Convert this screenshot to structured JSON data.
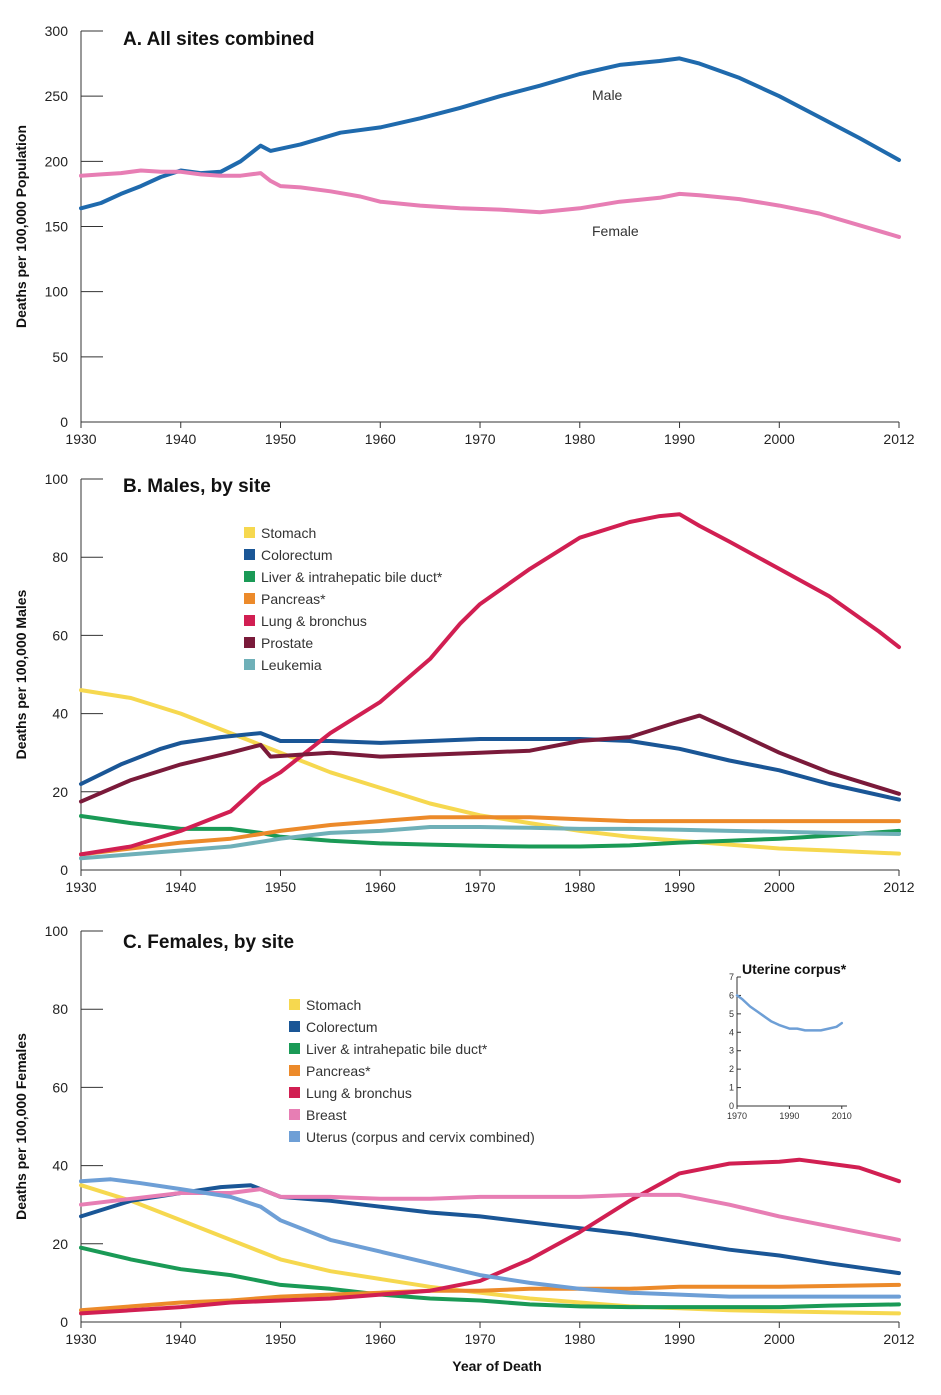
{
  "x_axis_label": "Year of Death",
  "colors": {
    "male": "#1f6aad",
    "female": "#e77eb4",
    "stomach": "#f6d84f",
    "colorectum": "#1a5696",
    "liver": "#1a9a56",
    "pancreas": "#ec8a2a",
    "lung": "#d11f52",
    "prostate": "#7a1a3a",
    "leukemia": "#6fb0b8",
    "breast": "#e77eb4",
    "uterus": "#6e9fd6",
    "uterine_corpus": "#6e9fd6"
  },
  "chart_data": [
    {
      "type": "line",
      "title": "A. All sites combined",
      "ylabel": "Deaths per 100,000 Population",
      "xlabel": "",
      "xlim": [
        1930,
        2012
      ],
      "ylim": [
        0,
        300
      ],
      "xticks": [
        "1930",
        "1940",
        "1950",
        "1960",
        "1970",
        "1980",
        "1990",
        "2000",
        "2012"
      ],
      "yticks": [
        "0",
        "50",
        "100",
        "150",
        "200",
        "250",
        "300"
      ],
      "series": [
        {
          "name": "Male",
          "key": "male",
          "x": [
            1930,
            1932,
            1934,
            1936,
            1938,
            1940,
            1942,
            1944,
            1946,
            1948,
            1949,
            1952,
            1956,
            1960,
            1964,
            1968,
            1972,
            1976,
            1980,
            1984,
            1988,
            1990,
            1992,
            1996,
            2000,
            2004,
            2008,
            2012
          ],
          "y": [
            164,
            168,
            175,
            181,
            188,
            193,
            191,
            192,
            200,
            212,
            208,
            213,
            222,
            226,
            233,
            241,
            250,
            258,
            267,
            274,
            277,
            279,
            275,
            264,
            250,
            234,
            218,
            201
          ]
        },
        {
          "name": "Female",
          "key": "female",
          "x": [
            1930,
            1932,
            1934,
            1936,
            1938,
            1940,
            1942,
            1944,
            1946,
            1948,
            1949,
            1950,
            1952,
            1955,
            1958,
            1960,
            1964,
            1968,
            1972,
            1976,
            1980,
            1984,
            1988,
            1990,
            1992,
            1996,
            2000,
            2004,
            2008,
            2012
          ],
          "y": [
            189,
            190,
            191,
            193,
            192,
            192,
            190,
            189,
            189,
            191,
            185,
            181,
            180,
            177,
            173,
            169,
            166,
            164,
            163,
            161,
            164,
            169,
            172,
            175,
            174,
            171,
            166,
            160,
            151,
            142
          ]
        }
      ]
    },
    {
      "type": "line",
      "title": "B. Males, by site",
      "ylabel": "Deaths per 100,000 Males",
      "xlabel": "",
      "xlim": [
        1930,
        2012
      ],
      "ylim": [
        0,
        100
      ],
      "xticks": [
        "1930",
        "1940",
        "1950",
        "1960",
        "1970",
        "1980",
        "1990",
        "2000",
        "2012"
      ],
      "yticks": [
        "0",
        "20",
        "40",
        "60",
        "80",
        "100"
      ],
      "series": [
        {
          "name": "Stomach",
          "key": "stomach",
          "x": [
            1930,
            1935,
            1940,
            1945,
            1950,
            1955,
            1960,
            1965,
            1970,
            1975,
            1980,
            1985,
            1990,
            1995,
            2000,
            2005,
            2012
          ],
          "y": [
            46,
            44,
            40,
            35,
            30,
            25,
            21,
            17,
            14,
            12,
            10,
            8.5,
            7.5,
            6.5,
            5.5,
            5,
            4.2
          ]
        },
        {
          "name": "Colorectum",
          "key": "colorectum",
          "x": [
            1930,
            1934,
            1938,
            1940,
            1944,
            1948,
            1950,
            1955,
            1960,
            1965,
            1970,
            1975,
            1980,
            1985,
            1990,
            1995,
            2000,
            2005,
            2012
          ],
          "y": [
            22,
            27,
            31,
            32.5,
            34,
            35,
            33,
            33,
            32.5,
            33,
            33.5,
            33.5,
            33.5,
            33,
            31,
            28,
            25.5,
            22,
            18
          ]
        },
        {
          "name": "Liver & intrahepatic bile duct*",
          "key": "liver",
          "x": [
            1930,
            1935,
            1940,
            1945,
            1948,
            1950,
            1955,
            1960,
            1965,
            1970,
            1975,
            1980,
            1985,
            1990,
            1995,
            2000,
            2005,
            2012
          ],
          "y": [
            13.8,
            12,
            10.5,
            10.5,
            9.5,
            8.5,
            7.5,
            6.8,
            6.5,
            6.2,
            6,
            6,
            6.3,
            7,
            7.5,
            8,
            8.8,
            10
          ]
        },
        {
          "name": "Pancreas*",
          "key": "pancreas",
          "x": [
            1930,
            1935,
            1940,
            1945,
            1950,
            1955,
            1960,
            1965,
            1970,
            1975,
            1980,
            1985,
            1990,
            1995,
            2000,
            2005,
            2012
          ],
          "y": [
            4,
            5.5,
            7,
            8,
            10,
            11.5,
            12.5,
            13.5,
            13.5,
            13.5,
            13,
            12.5,
            12.5,
            12.5,
            12.5,
            12.5,
            12.5
          ]
        },
        {
          "name": "Lung & bronchus",
          "key": "lung",
          "x": [
            1930,
            1935,
            1940,
            1945,
            1948,
            1950,
            1955,
            1960,
            1965,
            1968,
            1970,
            1975,
            1980,
            1985,
            1988,
            1990,
            1992,
            1995,
            2000,
            2005,
            2010,
            2012
          ],
          "y": [
            4,
            6,
            10,
            15,
            22,
            25,
            35,
            43,
            54,
            63,
            68,
            77,
            85,
            89,
            90.5,
            91,
            88,
            84,
            77,
            70,
            61,
            57
          ]
        },
        {
          "name": "Prostate",
          "key": "prostate",
          "x": [
            1930,
            1935,
            1940,
            1945,
            1948,
            1949,
            1955,
            1960,
            1965,
            1970,
            1975,
            1980,
            1985,
            1990,
            1992,
            1995,
            2000,
            2005,
            2012
          ],
          "y": [
            17.5,
            23,
            27,
            30,
            32,
            29,
            30,
            29,
            29.5,
            30,
            30.5,
            33,
            34,
            38,
            39.5,
            36,
            30,
            25,
            19.5
          ]
        },
        {
          "name": "Leukemia",
          "key": "leukemia",
          "x": [
            1930,
            1935,
            1940,
            1945,
            1950,
            1955,
            1960,
            1965,
            1970,
            1975,
            1980,
            1985,
            1990,
            1995,
            2000,
            2005,
            2012
          ],
          "y": [
            3,
            4,
            5,
            6,
            8,
            9.5,
            10,
            11,
            11,
            10.8,
            10.5,
            10.5,
            10.3,
            10,
            9.8,
            9.5,
            9.2
          ]
        }
      ]
    },
    {
      "type": "line",
      "title": "C. Females, by site",
      "ylabel": "Deaths per 100,000 Females",
      "xlabel": "Year of Death",
      "xlim": [
        1930,
        2012
      ],
      "ylim": [
        0,
        100
      ],
      "xticks": [
        "1930",
        "1940",
        "1950",
        "1960",
        "1970",
        "1980",
        "1990",
        "2000",
        "2012"
      ],
      "yticks": [
        "0",
        "20",
        "40",
        "60",
        "80",
        "100"
      ],
      "series": [
        {
          "name": "Stomach",
          "key": "stomach",
          "x": [
            1930,
            1935,
            1940,
            1945,
            1950,
            1955,
            1960,
            1965,
            1970,
            1975,
            1980,
            1985,
            1990,
            1995,
            2000,
            2005,
            2012
          ],
          "y": [
            35,
            31,
            26,
            21,
            16,
            13,
            11,
            9,
            7.5,
            6,
            5,
            4,
            3.5,
            3,
            2.7,
            2.5,
            2.2
          ]
        },
        {
          "name": "Colorectum",
          "key": "colorectum",
          "x": [
            1930,
            1935,
            1940,
            1944,
            1947,
            1950,
            1955,
            1960,
            1965,
            1970,
            1975,
            1980,
            1985,
            1990,
            1995,
            2000,
            2005,
            2012
          ],
          "y": [
            27,
            31,
            33,
            34.5,
            35,
            32,
            31,
            29.5,
            28,
            27,
            25.5,
            24,
            22.5,
            20.5,
            18.5,
            17,
            15,
            12.5
          ]
        },
        {
          "name": "Liver & intrahepatic bile duct*",
          "key": "liver",
          "x": [
            1930,
            1935,
            1940,
            1945,
            1950,
            1955,
            1960,
            1965,
            1970,
            1975,
            1980,
            1985,
            1990,
            1995,
            2000,
            2005,
            2012
          ],
          "y": [
            19,
            16,
            13.5,
            12,
            9.5,
            8.5,
            7,
            6,
            5.5,
            4.5,
            4,
            3.8,
            3.8,
            3.8,
            3.8,
            4.2,
            4.5
          ]
        },
        {
          "name": "Pancreas*",
          "key": "pancreas",
          "x": [
            1930,
            1935,
            1940,
            1945,
            1950,
            1955,
            1960,
            1965,
            1970,
            1975,
            1980,
            1985,
            1990,
            1995,
            2000,
            2005,
            2012
          ],
          "y": [
            3,
            4,
            5,
            5.5,
            6.5,
            7,
            7.5,
            8,
            8,
            8.5,
            8.5,
            8.5,
            9,
            9,
            9,
            9.2,
            9.5
          ]
        },
        {
          "name": "Lung & bronchus",
          "key": "lung",
          "x": [
            1930,
            1935,
            1940,
            1945,
            1950,
            1955,
            1960,
            1965,
            1970,
            1975,
            1980,
            1985,
            1990,
            1995,
            2000,
            2002,
            2005,
            2008,
            2012
          ],
          "y": [
            2.2,
            3,
            3.8,
            5,
            5.5,
            6,
            7,
            8,
            10.5,
            16,
            23,
            31,
            38,
            40.5,
            41,
            41.5,
            40.5,
            39.5,
            36
          ]
        },
        {
          "name": "Breast",
          "key": "breast",
          "x": [
            1930,
            1935,
            1940,
            1945,
            1948,
            1950,
            1955,
            1960,
            1965,
            1970,
            1975,
            1980,
            1985,
            1990,
            1995,
            2000,
            2005,
            2012
          ],
          "y": [
            30,
            31.5,
            33,
            33,
            34,
            32,
            32,
            31.5,
            31.5,
            32,
            32,
            32,
            32.5,
            32.5,
            30,
            27,
            24.5,
            21
          ]
        },
        {
          "name": "Uterus (corpus and cervix combined)",
          "key": "uterus",
          "x": [
            1930,
            1933,
            1936,
            1940,
            1945,
            1948,
            1950,
            1955,
            1960,
            1965,
            1970,
            1975,
            1980,
            1985,
            1990,
            1995,
            2000,
            2005,
            2012
          ],
          "y": [
            36,
            36.5,
            35.5,
            34,
            32,
            29.5,
            26,
            21,
            18,
            15,
            12,
            10,
            8.5,
            7.5,
            7,
            6.5,
            6.5,
            6.5,
            6.5
          ]
        }
      ]
    },
    {
      "type": "line",
      "title": "Uterine corpus*",
      "ylabel": "",
      "xlabel": "",
      "xlim": [
        1970,
        2012
      ],
      "ylim": [
        0,
        7
      ],
      "xticks": [
        "1970",
        "1990",
        "2010"
      ],
      "yticks": [
        "0",
        "1",
        "2",
        "3",
        "4",
        "5",
        "6",
        "7"
      ],
      "series": [
        {
          "key": "uterine_corpus",
          "x": [
            1970,
            1972,
            1975,
            1978,
            1980,
            1983,
            1986,
            1990,
            1993,
            1996,
            1999,
            2002,
            2005,
            2008,
            2010
          ],
          "y": [
            6,
            5.8,
            5.4,
            5.1,
            4.9,
            4.6,
            4.4,
            4.2,
            4.2,
            4.1,
            4.1,
            4.1,
            4.2,
            4.3,
            4.5
          ]
        }
      ]
    }
  ],
  "direct_labels": [
    {
      "chart": 0,
      "series": 0,
      "text": "Male"
    },
    {
      "chart": 0,
      "series": 1,
      "text": "Female"
    }
  ]
}
